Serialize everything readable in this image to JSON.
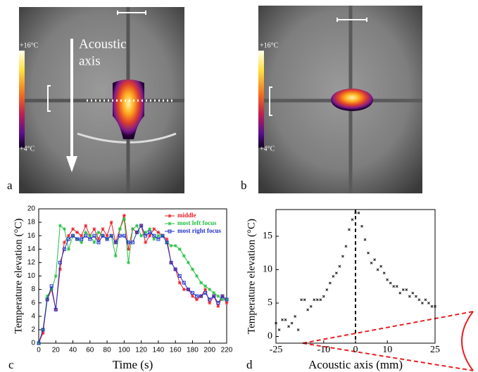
{
  "panels": [
    {
      "label": "a",
      "scale_max": "+16°C",
      "scale_min": "+4°C",
      "annotation": [
        "Acoustic",
        "axis"
      ]
    },
    {
      "label": "b",
      "scale_max": "+16°C",
      "scale_min": "+4°C"
    }
  ],
  "chart_data": [
    {
      "type": "line",
      "label": "c",
      "xlabel": "Time (s)",
      "ylabel": "Temperature elevation (°C)",
      "xlim": [
        0,
        220
      ],
      "xticks": [
        0,
        20,
        40,
        60,
        80,
        100,
        120,
        140,
        160,
        180,
        200,
        220
      ],
      "ylim": [
        0,
        20
      ],
      "yticks": [
        0,
        2,
        4,
        6,
        8,
        10,
        12,
        14,
        16,
        18,
        20
      ],
      "legend": "upper right",
      "x": [
        0,
        5,
        10,
        15,
        20,
        25,
        30,
        35,
        40,
        45,
        50,
        55,
        60,
        65,
        70,
        75,
        80,
        85,
        90,
        95,
        100,
        105,
        110,
        115,
        120,
        125,
        130,
        135,
        140,
        145,
        150,
        155,
        160,
        165,
        170,
        175,
        180,
        185,
        190,
        195,
        200,
        205,
        210,
        215,
        220
      ],
      "series": [
        {
          "name": "middle",
          "color": "#e8202a",
          "marker": "star",
          "values": [
            0,
            1.5,
            6.5,
            8,
            5,
            11,
            15,
            16,
            17,
            16.5,
            16,
            17.5,
            16,
            17,
            15.5,
            17,
            16,
            18,
            15,
            17,
            19,
            14,
            17,
            16.5,
            17.5,
            15,
            16,
            17,
            16.5,
            16,
            15.5,
            12,
            11,
            9,
            8,
            8,
            7,
            6.5,
            7,
            8,
            6,
            7,
            5.5,
            7,
            6
          ]
        },
        {
          "name": "most left focus",
          "color": "#22c040",
          "marker": "star",
          "values": [
            0,
            2,
            7,
            8,
            10,
            17.5,
            17,
            14,
            16,
            15.5,
            15,
            16.5,
            16,
            15,
            16.5,
            16,
            15.5,
            16,
            13,
            17,
            18.5,
            12,
            17,
            17.5,
            16,
            16.5,
            17,
            15.5,
            16,
            16,
            15,
            14.5,
            14.5,
            14,
            13,
            12,
            11,
            10,
            9,
            8.5,
            8,
            7.5,
            7,
            6.5,
            6.5
          ]
        },
        {
          "name": "most right focus",
          "color": "#2030c8",
          "marker": "square",
          "values": [
            0,
            2,
            6.5,
            8.5,
            5,
            12,
            14,
            15.5,
            16,
            15.5,
            15.5,
            16,
            15.5,
            16,
            15,
            16,
            15.5,
            16,
            15,
            16,
            16,
            15,
            15,
            16.5,
            17.5,
            16,
            16.5,
            16,
            15.5,
            16,
            15,
            12,
            11,
            10,
            9,
            8,
            7.5,
            7,
            7,
            7.5,
            6.5,
            7,
            6,
            7,
            6.5
          ]
        }
      ]
    },
    {
      "type": "scatter",
      "label": "d",
      "xlabel": "Acoustic axis (mm)",
      "ylabel": "Temperature elevation (°C)",
      "xlim": [
        -25,
        25
      ],
      "xticks": [
        -25,
        -10,
        0,
        10,
        25
      ],
      "ylim": [
        -1,
        19
      ],
      "yticks": [
        0,
        5,
        10,
        15
      ],
      "vline": 0,
      "color": "#222222",
      "x": [
        -25,
        -24,
        -23,
        -22,
        -21,
        -20,
        -19,
        -18,
        -17,
        -16,
        -15,
        -14,
        -13,
        -12,
        -11,
        -10,
        -9,
        -8,
        -7,
        -6,
        -5,
        -4,
        -3,
        -2,
        -1,
        0,
        1,
        2,
        3,
        4,
        5,
        6,
        7,
        8,
        9,
        10,
        11,
        12,
        13,
        14,
        15,
        16,
        17,
        18,
        19,
        20,
        21,
        22,
        23,
        24,
        25
      ],
      "values": [
        2,
        1,
        2.5,
        2.5,
        1.5,
        2,
        3,
        1,
        5.5,
        5.5,
        4,
        4.5,
        5.5,
        5.5,
        5.5,
        6,
        7,
        8,
        9,
        9.5,
        10.5,
        12,
        13.5,
        16,
        17.5,
        18.5,
        18.5,
        16.5,
        14.5,
        12.5,
        11,
        11.5,
        10,
        10.5,
        9.5,
        8.5,
        8,
        7.5,
        7.5,
        6.5,
        7,
        7,
        6,
        6.5,
        6,
        5.5,
        5,
        5.5,
        5,
        4.5,
        4.5
      ]
    }
  ]
}
